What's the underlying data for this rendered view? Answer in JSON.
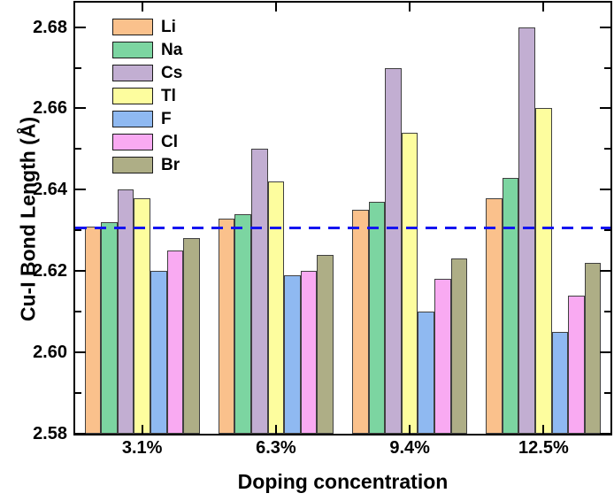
{
  "chart_data": {
    "type": "bar",
    "title": "",
    "xlabel": "Doping concentration",
    "ylabel": "Cu-I Bond Length (Å)",
    "categories": [
      "3.1%",
      "6.3%",
      "9.4%",
      "12.5%"
    ],
    "series": [
      {
        "name": "Li",
        "color": "#FAC18C",
        "values": [
          2.631,
          2.633,
          2.635,
          2.638
        ]
      },
      {
        "name": "Na",
        "color": "#7CD5A1",
        "values": [
          2.632,
          2.634,
          2.637,
          2.643
        ]
      },
      {
        "name": "Cs",
        "color": "#C2AED2",
        "values": [
          2.64,
          2.65,
          2.67,
          2.68
        ]
      },
      {
        "name": "Tl",
        "color": "#FDFD9E",
        "values": [
          2.638,
          2.642,
          2.654,
          2.66
        ]
      },
      {
        "name": "F",
        "color": "#8FB9F1",
        "values": [
          2.62,
          2.619,
          2.61,
          2.605
        ]
      },
      {
        "name": "Cl",
        "color": "#F9AAF2",
        "values": [
          2.625,
          2.62,
          2.618,
          2.614
        ]
      },
      {
        "name": "Br",
        "color": "#AEAE86",
        "values": [
          2.628,
          2.624,
          2.623,
          2.622
        ]
      }
    ],
    "ylim": [
      2.58,
      2.686
    ],
    "yticks_major": [
      2.58,
      2.6,
      2.62,
      2.64,
      2.66,
      2.68
    ],
    "ytick_labels": [
      "2.58",
      "2.60",
      "2.62",
      "2.64",
      "2.66",
      "2.68"
    ],
    "yticks_minor": [
      2.59,
      2.61,
      2.63,
      2.65,
      2.67
    ],
    "reference_line": {
      "value": 2.6305,
      "color": "#1414F0",
      "style": "dashed"
    },
    "legend": {
      "position": "upper-left",
      "entries": [
        "Li",
        "Na",
        "Cs",
        "Tl",
        "F",
        "Cl",
        "Br"
      ]
    },
    "grid": false,
    "colors": {
      "bar_edge": "#404040",
      "axis": "#000000",
      "background": "#FFFFFF"
    }
  }
}
